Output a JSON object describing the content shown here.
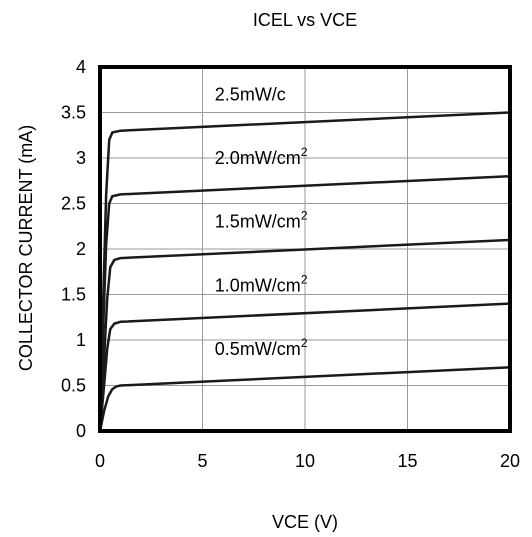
{
  "chart_data": {
    "type": "line",
    "title": "ICEL vs VCE",
    "xlabel": "VCE (V)",
    "ylabel": "COLLECTOR CURRENT (mA)",
    "xlim": [
      0,
      20
    ],
    "ylim": [
      0,
      4
    ],
    "x_ticks": [
      "0",
      "5",
      "10",
      "15",
      "20"
    ],
    "y_ticks": [
      "0",
      "0.5",
      "1",
      "1.5",
      "2",
      "2.5",
      "3",
      "3.5",
      "4"
    ],
    "grid": true,
    "legend": "none",
    "line_color": "#1a1a1a",
    "series": [
      {
        "label_main": "0.5mW/cm",
        "label_sup": "2",
        "x": [
          0,
          0.2,
          0.4,
          0.6,
          0.8,
          1.0,
          20
        ],
        "y": [
          0,
          0.22,
          0.38,
          0.46,
          0.49,
          0.5,
          0.7
        ]
      },
      {
        "label_main": "1.0mW/cm",
        "label_sup": "2",
        "x": [
          0,
          0.2,
          0.35,
          0.5,
          0.7,
          1.0,
          20
        ],
        "y": [
          0,
          0.5,
          0.9,
          1.12,
          1.18,
          1.2,
          1.4
        ]
      },
      {
        "label_main": "1.5mW/cm",
        "label_sup": "2",
        "x": [
          0,
          0.2,
          0.35,
          0.5,
          0.7,
          1.0,
          20
        ],
        "y": [
          0,
          0.8,
          1.45,
          1.8,
          1.88,
          1.9,
          2.1
        ]
      },
      {
        "label_main": "2.0mW/cm",
        "label_sup": "2",
        "x": [
          0,
          0.15,
          0.3,
          0.45,
          0.6,
          1.0,
          20
        ],
        "y": [
          0,
          1.1,
          2.05,
          2.5,
          2.58,
          2.6,
          2.8
        ]
      },
      {
        "label_main": "2.5mW/c",
        "label_sup": "",
        "x": [
          0,
          0.15,
          0.3,
          0.45,
          0.6,
          1.0,
          20
        ],
        "y": [
          0,
          1.4,
          2.6,
          3.2,
          3.28,
          3.3,
          3.5
        ]
      }
    ]
  }
}
